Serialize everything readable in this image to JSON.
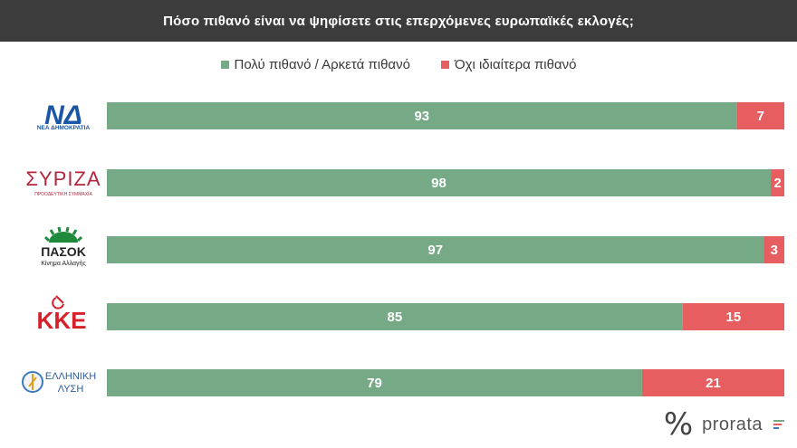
{
  "title": "Πόσο πιθανό είναι να ψηφίσετε στις επερχόμενες ευρωπαϊκές εκλογές;",
  "colors": {
    "likely": "#76a986",
    "unlikely": "#e65e5f",
    "title_bg": "#3c3c3c"
  },
  "chart_data": {
    "type": "bar",
    "orientation": "horizontal",
    "stacked": true,
    "legend_position": "top",
    "categories": [
      "ΝΔ",
      "ΣΥΡΙΖΑ",
      "ΠΑΣΟΚ",
      "ΚΚΕ",
      "ΕΛΛΗΝΙΚΗ ΛΥΣΗ"
    ],
    "series": [
      {
        "name": "Πολύ πιθανό / Αρκετά πιθανό",
        "values": [
          93,
          98,
          97,
          85,
          79
        ]
      },
      {
        "name": "Όχι ιδιαίτερα πιθανό",
        "values": [
          7,
          2,
          3,
          15,
          21
        ]
      }
    ],
    "xlim": [
      0,
      100
    ]
  },
  "logos": {
    "nd": {
      "mark": "ΝΔ",
      "subtitle": "ΝΕΑ ΔΗΜΟΚΡΑΤΙΑ"
    },
    "syriza": {
      "mark": "ΣΥΡΙΖΑ",
      "subtitle": "ΠΡΟΟΔΕΥΤΙΚΗ ΣΥΜΜΑΧΙΑ"
    },
    "pasok": {
      "mark": "ΠΑΣΟΚ",
      "subtitle": "Κίνημα Αλλαγής"
    },
    "kke": {
      "mark": "ΚΚΕ"
    },
    "el": {
      "line1": "ΕΛΛΗΝΙΚΗ",
      "line2": "ΛΥΣΗ"
    }
  },
  "footer": {
    "symbol": "%",
    "brand": "prorata"
  }
}
